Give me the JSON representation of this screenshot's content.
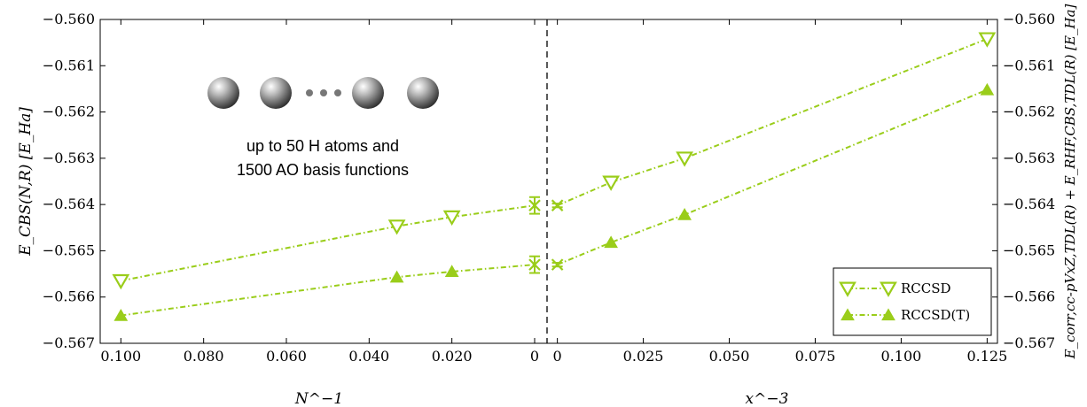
{
  "chart_data": {
    "type": "scatter",
    "colors": {
      "series": "#9acd1a"
    },
    "annotation": {
      "line1": "up to 50 H atoms and",
      "line2": "1500 AO basis functions",
      "dots": "• • •"
    },
    "legend": {
      "placement": "bottom-right",
      "entries": [
        {
          "label": "RCCSD",
          "marker": "triangle-down-open"
        },
        {
          "label": "RCCSD(T)",
          "marker": "triangle-up-filled"
        }
      ]
    },
    "y_axis": {
      "range": [
        -0.567,
        -0.56
      ],
      "ticks": [
        "−0.560",
        "−0.561",
        "−0.562",
        "−0.563",
        "−0.564",
        "−0.565",
        "−0.566",
        "−0.567"
      ],
      "left_label": "E_CBS(N,R) [E_Ha]",
      "right_label": "E_corr,cc-pVxZ,TDL(R) + E_RHF,CBS,TDL(R) [E_Ha]"
    },
    "left_panel": {
      "xlabel": "N^−1",
      "xlim": [
        0.105,
        -0.003
      ],
      "x_ticks": [
        "0.100",
        "0.080",
        "0.060",
        "0.040",
        "0.020",
        "0"
      ],
      "x_tick_values": [
        0.1,
        0.08,
        0.06,
        0.04,
        0.02,
        0
      ],
      "series": [
        {
          "name": "RCCSD",
          "x": [
            0.1,
            0.0333,
            0.02,
            0.0
          ],
          "y": [
            -0.56565,
            -0.56447,
            -0.56427,
            -0.56402
          ],
          "error": [
            0,
            0,
            0,
            0.00018
          ]
        },
        {
          "name": "RCCSD(T)",
          "x": [
            0.1,
            0.0333,
            0.02,
            0.0
          ],
          "y": [
            -0.5664,
            -0.56557,
            -0.56545,
            -0.5653
          ],
          "error": [
            0,
            0,
            0,
            0.00018
          ]
        }
      ]
    },
    "right_panel": {
      "xlabel": "x^−3",
      "xlim": [
        -0.003,
        0.128
      ],
      "x_ticks": [
        "0",
        "0.025",
        "0.050",
        "0.075",
        "0.100",
        "0.125"
      ],
      "x_tick_values": [
        0,
        0.025,
        0.05,
        0.075,
        0.1,
        0.125
      ],
      "series": [
        {
          "name": "RCCSD",
          "x": [
            0.0,
            0.0156,
            0.037,
            0.125
          ],
          "y": [
            -0.56402,
            -0.56352,
            -0.563,
            -0.56042
          ],
          "error": [
            4e-05,
            0,
            0,
            0
          ]
        },
        {
          "name": "RCCSD(T)",
          "x": [
            0.0,
            0.0156,
            0.037,
            0.125
          ],
          "y": [
            -0.5653,
            -0.56482,
            -0.56422,
            -0.56152
          ],
          "error": [
            4e-05,
            0,
            0,
            0
          ]
        }
      ]
    }
  }
}
